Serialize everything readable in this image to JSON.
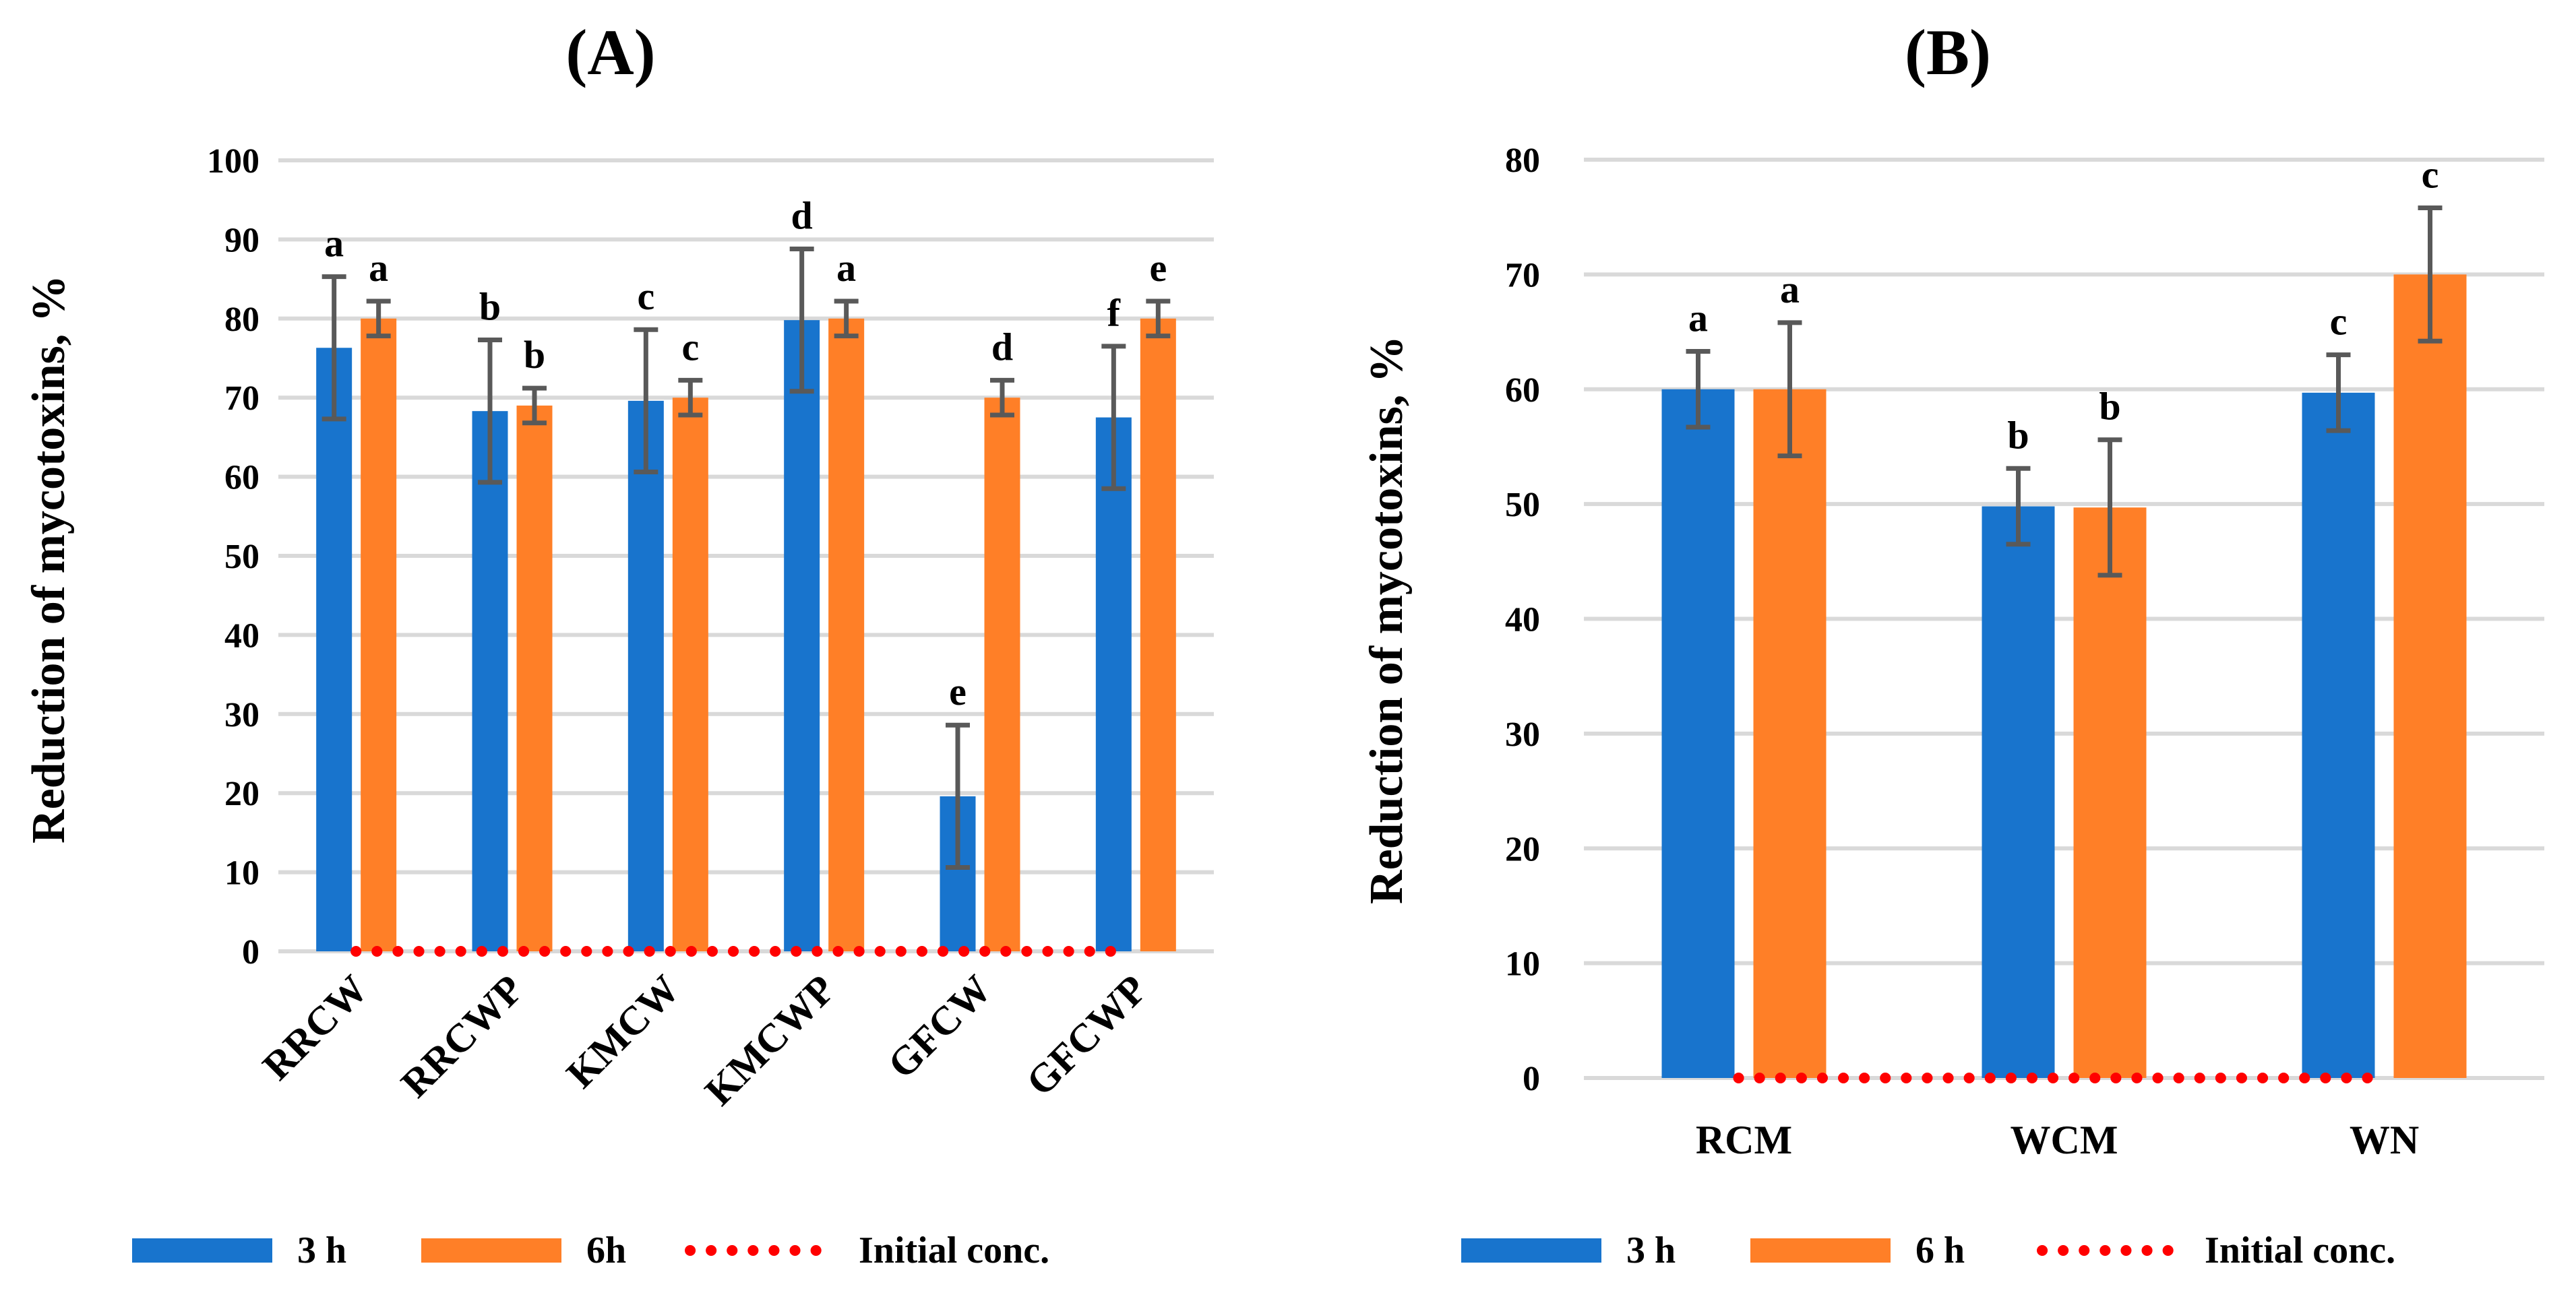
{
  "colors": {
    "s3h": "#1874CD",
    "s6h": "#FF7F27",
    "initial": "#FF0000",
    "error": "#595959",
    "grid": "#D9D9D9"
  },
  "chart_data": [
    {
      "type": "bar",
      "title": "(A)",
      "xlabel": "",
      "ylabel": "Reduction of mycotoxins, %",
      "ylim": [
        0,
        100
      ],
      "yticks": [
        0,
        10,
        20,
        30,
        40,
        50,
        60,
        70,
        80,
        90,
        100
      ],
      "grid": true,
      "legend_position": "bottom",
      "categories": [
        "RRCW",
        "RRCWP",
        "KMCW",
        "KMCWP",
        "GFCW",
        "GFCWP"
      ],
      "series": [
        {
          "name": "3 h",
          "values": [
            76.3,
            68.3,
            69.6,
            79.8,
            19.6,
            67.5
          ],
          "errors": [
            9,
            9,
            9,
            9,
            9,
            9
          ],
          "letters": [
            "a",
            "b",
            "c",
            "d",
            "e",
            "f"
          ]
        },
        {
          "name": "6h",
          "values": [
            80,
            69,
            70,
            80,
            70,
            80
          ],
          "errors": [
            2.2,
            2.2,
            2.2,
            2.2,
            2.2,
            2.2
          ],
          "letters": [
            "a",
            "b",
            "c",
            "a",
            "d",
            "e"
          ]
        },
        {
          "name": "Initial conc.",
          "values": [
            0,
            0,
            0,
            0,
            0,
            0
          ]
        }
      ]
    },
    {
      "type": "bar",
      "title": "(B)",
      "xlabel": "",
      "ylabel": "Reduction of mycotoxins, %",
      "ylim": [
        0,
        80
      ],
      "yticks": [
        0,
        10,
        20,
        30,
        40,
        50,
        60,
        70,
        80
      ],
      "grid": true,
      "legend_position": "bottom",
      "categories": [
        "RCM",
        "WCM",
        "WN"
      ],
      "series": [
        {
          "name": "3 h",
          "values": [
            60,
            49.8,
            59.7
          ],
          "errors": [
            3.3,
            3.3,
            3.3
          ],
          "letters": [
            "a",
            "b",
            "c"
          ]
        },
        {
          "name": "6 h",
          "values": [
            60,
            49.7,
            70
          ],
          "errors": [
            5.8,
            5.9,
            5.8
          ],
          "letters": [
            "a",
            "b",
            "c"
          ]
        },
        {
          "name": "Initial conc.",
          "values": [
            0,
            0,
            0
          ]
        }
      ]
    }
  ]
}
